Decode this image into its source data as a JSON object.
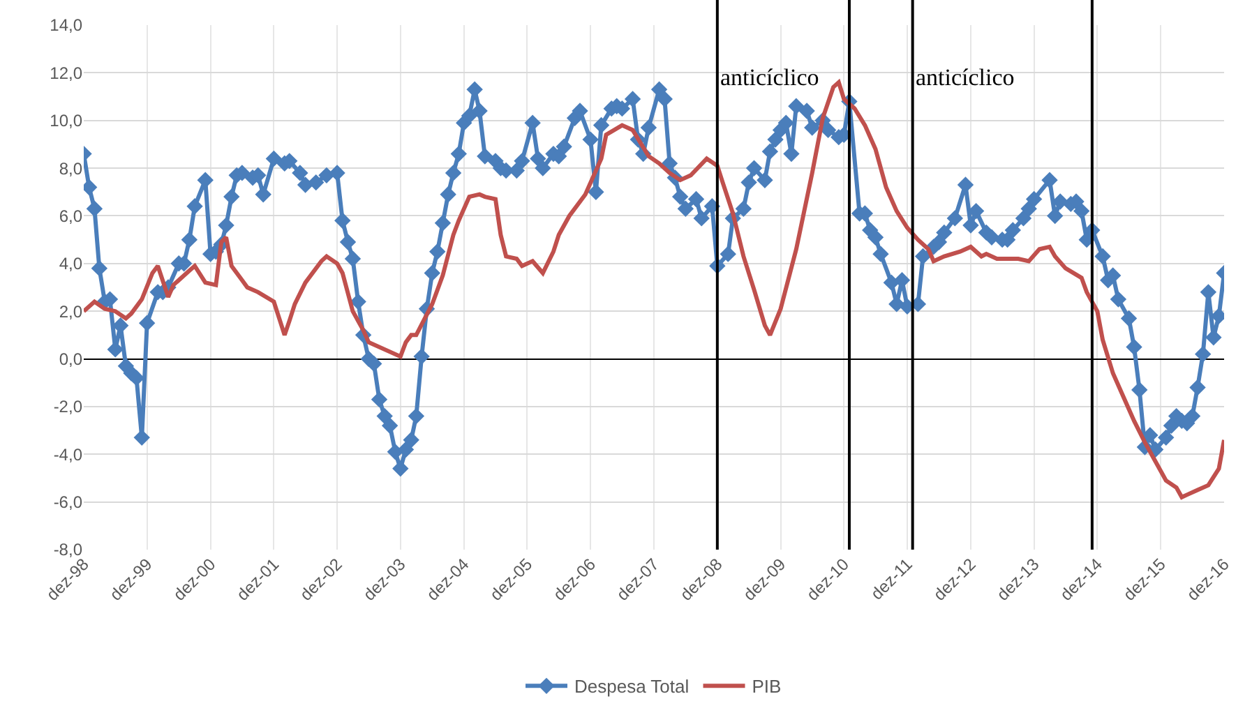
{
  "chart_data": {
    "type": "line",
    "legend": "bottom",
    "grid": true,
    "xlim": [
      "1998-12",
      "2016-12"
    ],
    "xticks": [
      {
        "value": "1998-12",
        "label": "dez-98"
      },
      {
        "value": "1999-12",
        "label": "dez-99"
      },
      {
        "value": "2000-12",
        "label": "dez-00"
      },
      {
        "value": "2001-12",
        "label": "dez-01"
      },
      {
        "value": "2002-12",
        "label": "dez-02"
      },
      {
        "value": "2003-12",
        "label": "dez-03"
      },
      {
        "value": "2004-12",
        "label": "dez-04"
      },
      {
        "value": "2005-12",
        "label": "dez-05"
      },
      {
        "value": "2006-12",
        "label": "dez-06"
      },
      {
        "value": "2007-12",
        "label": "dez-07"
      },
      {
        "value": "2008-12",
        "label": "dez-08"
      },
      {
        "value": "2009-12",
        "label": "dez-09"
      },
      {
        "value": "2010-12",
        "label": "dez-10"
      },
      {
        "value": "2011-12",
        "label": "dez-11"
      },
      {
        "value": "2012-12",
        "label": "dez-12"
      },
      {
        "value": "2013-12",
        "label": "dez-13"
      },
      {
        "value": "2014-12",
        "label": "dez-14"
      },
      {
        "value": "2015-12",
        "label": "dez-15"
      },
      {
        "value": "2016-12",
        "label": "dez-16"
      }
    ],
    "ylim": [
      -8,
      14
    ],
    "yticks": [
      {
        "value": -8,
        "label": "-8,0"
      },
      {
        "value": -6,
        "label": "-6,0"
      },
      {
        "value": -4,
        "label": "-4,0"
      },
      {
        "value": -2,
        "label": "-2,0"
      },
      {
        "value": 0,
        "label": "0,0"
      },
      {
        "value": 2,
        "label": "2,0"
      },
      {
        "value": 4,
        "label": "4,0"
      },
      {
        "value": 6,
        "label": "6,0"
      },
      {
        "value": 8,
        "label": "8,0"
      },
      {
        "value": 10,
        "label": "10,0"
      },
      {
        "value": 12,
        "label": "12,0"
      },
      {
        "value": 14,
        "label": "14,0"
      }
    ],
    "ref_lines": [
      {
        "axis": "x",
        "value": "2008-12",
        "color": "#000000",
        "label": "anticíclico"
      },
      {
        "axis": "x",
        "value": "2011-01",
        "color": "#000000"
      },
      {
        "axis": "x",
        "value": "2012-01",
        "color": "#000000",
        "label": "anticíclico"
      },
      {
        "axis": "x",
        "value": "2014-11",
        "color": "#000000"
      }
    ],
    "series": [
      {
        "name": "Despesa Total",
        "color": "#4a7ebb",
        "marker": "diamond",
        "x": [
          "1998-12",
          "1999-01",
          "1999-02",
          "1999-03",
          "1999-04",
          "1999-05",
          "1999-06",
          "1999-07",
          "1999-08",
          "1999-09",
          "1999-10",
          "1999-11",
          "1999-12",
          "2000-02",
          "2000-03",
          "2000-04",
          "2000-06",
          "2000-07",
          "2000-08",
          "2000-09",
          "2000-11",
          "2000-12",
          "2001-01",
          "2001-02",
          "2001-03",
          "2001-04",
          "2001-05",
          "2001-06",
          "2001-08",
          "2001-09",
          "2001-10",
          "2001-12",
          "2002-02",
          "2002-03",
          "2002-05",
          "2002-06",
          "2002-08",
          "2002-10",
          "2002-12",
          "2003-01",
          "2003-02",
          "2003-03",
          "2003-04",
          "2003-05",
          "2003-06",
          "2003-07",
          "2003-08",
          "2003-09",
          "2003-10",
          "2003-11",
          "2003-12",
          "2004-01",
          "2004-02",
          "2004-03",
          "2004-04",
          "2004-05",
          "2004-06",
          "2004-07",
          "2004-08",
          "2004-09",
          "2004-10",
          "2004-11",
          "2004-12",
          "2005-01",
          "2005-02",
          "2005-03",
          "2005-04",
          "2005-06",
          "2005-07",
          "2005-08",
          "2005-10",
          "2005-11",
          "2006-01",
          "2006-02",
          "2006-03",
          "2006-05",
          "2006-06",
          "2006-07",
          "2006-09",
          "2006-10",
          "2006-12",
          "2007-01",
          "2007-02",
          "2007-04",
          "2007-05",
          "2007-06",
          "2007-08",
          "2007-09",
          "2007-10",
          "2007-11",
          "2008-01",
          "2008-02",
          "2008-03",
          "2008-04",
          "2008-05",
          "2008-06",
          "2008-08",
          "2008-09",
          "2008-11",
          "2008-12",
          "2009-02",
          "2009-03",
          "2009-05",
          "2009-06",
          "2009-07",
          "2009-09",
          "2009-10",
          "2009-11",
          "2009-12",
          "2010-01",
          "2010-02",
          "2010-03",
          "2010-05",
          "2010-06",
          "2010-08",
          "2010-09",
          "2010-11",
          "2010-12",
          "2011-01",
          "2011-03",
          "2011-04",
          "2011-05",
          "2011-06",
          "2011-07",
          "2011-09",
          "2011-10",
          "2011-11",
          "2011-12",
          "2012-02",
          "2012-03",
          "2012-05",
          "2012-06",
          "2012-07",
          "2012-09",
          "2012-11",
          "2012-12",
          "2013-01",
          "2013-03",
          "2013-04",
          "2013-06",
          "2013-07",
          "2013-08",
          "2013-10",
          "2013-11",
          "2013-12",
          "2014-03",
          "2014-04",
          "2014-05",
          "2014-07",
          "2014-08",
          "2014-09",
          "2014-10",
          "2014-11",
          "2015-01",
          "2015-02",
          "2015-03",
          "2015-04",
          "2015-06",
          "2015-07",
          "2015-08",
          "2015-09",
          "2015-10",
          "2015-11",
          "2016-01",
          "2016-02",
          "2016-03",
          "2016-04",
          "2016-05",
          "2016-06",
          "2016-07",
          "2016-08",
          "2016-09",
          "2016-10",
          "2016-11",
          "2016-12"
        ],
        "values": [
          8.6,
          7.2,
          6.3,
          3.8,
          2.4,
          2.5,
          0.4,
          1.4,
          -0.3,
          -0.6,
          -0.8,
          -3.3,
          1.5,
          2.8,
          2.8,
          3.0,
          4.0,
          4.0,
          5.0,
          6.4,
          7.5,
          4.4,
          4.5,
          4.8,
          5.6,
          6.8,
          7.7,
          7.8,
          7.6,
          7.7,
          6.9,
          8.4,
          8.2,
          8.3,
          7.8,
          7.3,
          7.4,
          7.7,
          7.8,
          5.8,
          4.9,
          4.2,
          2.4,
          1.0,
          0.0,
          -0.2,
          -1.7,
          -2.4,
          -2.8,
          -3.9,
          -4.6,
          -3.8,
          -3.4,
          -2.4,
          0.1,
          2.1,
          3.6,
          4.5,
          5.7,
          6.9,
          7.8,
          8.6,
          9.9,
          10.2,
          11.3,
          10.4,
          8.5,
          8.3,
          8.0,
          7.9,
          7.9,
          8.3,
          9.9,
          8.4,
          8.0,
          8.6,
          8.5,
          8.9,
          10.1,
          10.4,
          9.2,
          7.0,
          9.8,
          10.5,
          10.6,
          10.5,
          10.9,
          9.2,
          8.6,
          9.7,
          11.3,
          10.9,
          8.2,
          7.6,
          6.8,
          6.3,
          6.7,
          5.9,
          6.4,
          3.9,
          4.4,
          5.9,
          6.3,
          7.4,
          8.0,
          7.5,
          8.7,
          9.2,
          9.6,
          9.9,
          8.6,
          10.6,
          10.4,
          9.7,
          10.0,
          9.6,
          9.3,
          9.4,
          10.8,
          6.1,
          6.1,
          5.4,
          5.1,
          4.4,
          3.2,
          2.3,
          3.3,
          2.2,
          2.3,
          4.3,
          4.7,
          4.9,
          5.3,
          5.9,
          7.3,
          5.6,
          6.2,
          5.3,
          5.1,
          5.0,
          5.0,
          5.4,
          5.9,
          6.3,
          6.7,
          7.5,
          6.0,
          6.6,
          6.5,
          6.6,
          6.2,
          5.0,
          5.4,
          4.3,
          3.3,
          3.5,
          2.5,
          1.7,
          0.5,
          -1.3,
          -3.7,
          -3.2,
          -3.8,
          -3.3,
          -2.8,
          -2.4,
          -2.6,
          -2.7,
          -2.4,
          -1.2,
          0.2,
          2.8,
          0.9,
          1.8,
          3.6
        ]
      },
      {
        "name": "PIB",
        "color": "#c0504d",
        "marker": "none",
        "x": [
          "1998-12",
          "1999-02",
          "1999-04",
          "1999-06",
          "1999-08",
          "1999-09",
          "1999-11",
          "2000-01",
          "2000-02",
          "2000-04",
          "2000-05",
          "2000-08",
          "2000-09",
          "2000-11",
          "2001-01",
          "2001-02",
          "2001-03",
          "2001-04",
          "2001-06",
          "2001-07",
          "2001-09",
          "2001-12",
          "2002-01",
          "2002-02",
          "2002-03",
          "2002-04",
          "2002-06",
          "2002-09",
          "2002-10",
          "2002-12",
          "2003-01",
          "2003-03",
          "2003-05",
          "2003-06",
          "2003-12",
          "2004-01",
          "2004-02",
          "2004-03",
          "2004-06",
          "2004-08",
          "2004-10",
          "2004-11",
          "2005-01",
          "2005-03",
          "2005-04",
          "2005-06",
          "2005-07",
          "2005-08",
          "2005-10",
          "2005-11",
          "2006-01",
          "2006-03",
          "2006-05",
          "2006-06",
          "2006-08",
          "2006-11",
          "2007-02",
          "2007-03",
          "2007-06",
          "2007-08",
          "2007-11",
          "2008-01",
          "2008-03",
          "2008-05",
          "2008-07",
          "2008-10",
          "2008-12",
          "2009-01",
          "2009-03",
          "2009-05",
          "2009-07",
          "2009-09",
          "2009-10",
          "2009-12",
          "2010-03",
          "2010-06",
          "2010-08",
          "2010-10",
          "2010-11",
          "2010-12",
          "2011-02",
          "2011-04",
          "2011-06",
          "2011-08",
          "2011-10",
          "2011-12",
          "2012-02",
          "2012-04",
          "2012-05",
          "2012-07",
          "2012-10",
          "2012-12",
          "2013-02",
          "2013-03",
          "2013-05",
          "2013-07",
          "2013-09",
          "2013-11",
          "2014-01",
          "2014-03",
          "2014-04",
          "2014-06",
          "2014-09",
          "2014-10",
          "2014-12",
          "2015-01",
          "2015-03",
          "2015-05",
          "2015-07",
          "2015-09",
          "2015-11",
          "2016-01",
          "2016-03",
          "2016-04",
          "2016-05",
          "2016-07",
          "2016-09",
          "2016-11",
          "2016-12"
        ],
        "values": [
          2.0,
          2.4,
          2.1,
          2.0,
          1.7,
          1.9,
          2.5,
          3.6,
          3.9,
          2.6,
          3.1,
          3.7,
          3.9,
          3.2,
          3.1,
          4.9,
          5.1,
          3.9,
          3.3,
          3.0,
          2.8,
          2.4,
          1.7,
          1.0,
          1.6,
          2.3,
          3.2,
          4.1,
          4.3,
          4.0,
          3.6,
          2.0,
          1.2,
          0.7,
          0.1,
          0.7,
          1.0,
          1.0,
          2.3,
          3.5,
          5.2,
          5.8,
          6.8,
          6.9,
          6.8,
          6.7,
          5.2,
          4.3,
          4.2,
          3.9,
          4.1,
          3.6,
          4.5,
          5.2,
          6.0,
          6.9,
          8.4,
          9.4,
          9.8,
          9.6,
          8.5,
          8.2,
          7.8,
          7.5,
          7.7,
          8.4,
          8.1,
          7.4,
          6.1,
          4.3,
          2.9,
          1.4,
          1.0,
          2.1,
          4.6,
          7.8,
          10.1,
          11.4,
          11.6,
          10.9,
          10.5,
          9.8,
          8.8,
          7.2,
          6.2,
          5.5,
          5.0,
          4.6,
          4.1,
          4.3,
          4.5,
          4.7,
          4.3,
          4.4,
          4.2,
          4.2,
          4.2,
          4.1,
          4.6,
          4.7,
          4.3,
          3.8,
          3.4,
          2.8,
          2.0,
          0.8,
          -0.6,
          -1.6,
          -2.6,
          -3.5,
          -4.3,
          -5.1,
          -5.4,
          -5.8,
          -5.7,
          -5.5,
          -5.3,
          -4.6,
          -3.4
        ]
      }
    ]
  }
}
